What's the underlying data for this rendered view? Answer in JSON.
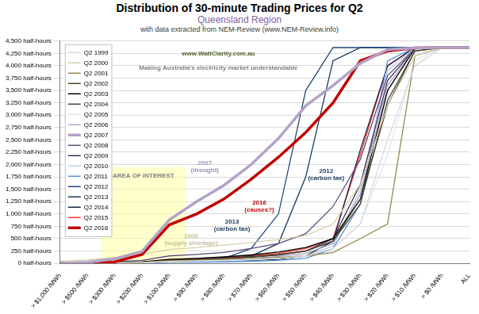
{
  "chart_data": {
    "type": "line",
    "title": "Distribution of 30-minute Trading Prices for Q2",
    "subtitle": "Queensland Region",
    "source": "with data extracted from NEM-Review (www.NEM-Review.info)",
    "categories": [
      "> $1,000 /MWh",
      "> $500 /MWh",
      "> $300 /MWh",
      "> $200 /MWh",
      "> $100 /MWh",
      "> $90 /MWh",
      "> $80 /MWh",
      "> $70 /MWh",
      "> $60 /MWh",
      "> $50 /MWh",
      "> $40 /MWh",
      "> $30 /MWh",
      "> $20 /MWh",
      "> $10 /MWh",
      "> $0 /MWh",
      "ALL"
    ],
    "series": [
      {
        "name": "Q2 1999",
        "color": "#d9d9d9",
        "values": [
          0,
          0,
          10,
          20,
          40,
          50,
          60,
          80,
          100,
          150,
          300,
          800,
          2500,
          4000,
          4368,
          4368
        ]
      },
      {
        "name": "Q2 2000",
        "color": "#d6cfa8",
        "values": [
          40,
          70,
          120,
          180,
          280,
          320,
          370,
          420,
          480,
          560,
          800,
          1600,
          3200,
          4200,
          4368,
          4368
        ]
      },
      {
        "name": "Q2 2001",
        "color": "#938953",
        "values": [
          0,
          5,
          10,
          20,
          50,
          60,
          80,
          100,
          120,
          150,
          220,
          500,
          800,
          4200,
          4368,
          4368
        ]
      },
      {
        "name": "Q2 2002",
        "color": "#4a452a",
        "values": [
          0,
          5,
          10,
          20,
          60,
          80,
          100,
          130,
          180,
          250,
          450,
          1300,
          3200,
          4300,
          4368,
          4368
        ]
      },
      {
        "name": "Q2 2003",
        "color": "#000000",
        "values": [
          0,
          10,
          20,
          30,
          80,
          100,
          130,
          170,
          230,
          320,
          500,
          1300,
          3500,
          4350,
          4368,
          4368
        ]
      },
      {
        "name": "Q2 2004",
        "color": "#404040",
        "values": [
          0,
          5,
          15,
          25,
          60,
          80,
          100,
          130,
          170,
          250,
          450,
          1200,
          3300,
          4300,
          4368,
          4368
        ]
      },
      {
        "name": "Q2 2005",
        "color": "#dce6f2",
        "values": [
          0,
          5,
          10,
          15,
          40,
          50,
          60,
          80,
          100,
          150,
          300,
          800,
          2200,
          4100,
          4368,
          4368
        ]
      },
      {
        "name": "Q2 2006",
        "color": "#b3a2c7",
        "values": [
          0,
          5,
          10,
          20,
          50,
          60,
          80,
          100,
          140,
          200,
          400,
          1400,
          3600,
          4350,
          4368,
          4368
        ]
      },
      {
        "name": "Q2 2007",
        "color": "#b3a2c7",
        "line_style": "thick",
        "values": [
          0,
          20,
          90,
          240,
          880,
          1250,
          1580,
          2000,
          2530,
          3190,
          3600,
          4050,
          4330,
          4360,
          4368,
          4368
        ]
      },
      {
        "name": "Q2 2008",
        "color": "#604a7b",
        "values": [
          0,
          10,
          30,
          60,
          150,
          180,
          220,
          300,
          400,
          600,
          1150,
          2100,
          3800,
          4350,
          4368,
          4368
        ]
      },
      {
        "name": "Q2 2009",
        "color": "#3f3151",
        "values": [
          0,
          5,
          10,
          20,
          60,
          80,
          100,
          130,
          170,
          250,
          500,
          1600,
          3700,
          4350,
          4368,
          4368
        ]
      },
      {
        "name": "Q2 2010",
        "color": "#b9cde5",
        "values": [
          0,
          5,
          10,
          15,
          30,
          40,
          50,
          70,
          100,
          150,
          350,
          1500,
          3900,
          4368,
          4368,
          4368
        ]
      },
      {
        "name": "Q2 2011",
        "color": "#558ed5",
        "values": [
          0,
          0,
          5,
          10,
          20,
          25,
          30,
          40,
          60,
          100,
          300,
          1200,
          4100,
          4368,
          4368,
          4368
        ]
      },
      {
        "name": "Q2 2012",
        "color": "#1f497d",
        "values": [
          0,
          5,
          10,
          20,
          40,
          60,
          100,
          300,
          1000,
          3500,
          4368,
          4368,
          4368,
          4368,
          4368,
          4368
        ]
      },
      {
        "name": "Q2 2013",
        "color": "#17375e",
        "values": [
          0,
          5,
          10,
          15,
          30,
          40,
          60,
          150,
          400,
          1750,
          4100,
          4368,
          4368,
          4368,
          4368,
          4368
        ]
      },
      {
        "name": "Q2 2014",
        "color": "#0f243e",
        "values": [
          0,
          0,
          5,
          10,
          30,
          40,
          50,
          60,
          80,
          150,
          450,
          2300,
          4000,
          4368,
          4368,
          4368
        ]
      },
      {
        "name": "Q2 2015",
        "color": "#ff3333",
        "values": [
          0,
          5,
          10,
          20,
          80,
          100,
          120,
          150,
          200,
          300,
          500,
          2200,
          4000,
          4368,
          4368,
          4368
        ]
      },
      {
        "name": "Q2 2016",
        "color": "#c00000",
        "line_style": "thick",
        "values": [
          5,
          10,
          30,
          180,
          780,
          1000,
          1300,
          1700,
          2150,
          2650,
          3250,
          4100,
          4300,
          4360,
          4368,
          4368
        ]
      }
    ],
    "ylim": [
      0,
      4500
    ],
    "yticks": [
      {
        "value": 0,
        "label": "0 half-hours"
      },
      {
        "value": 250,
        "label": "250 half-hours"
      },
      {
        "value": 500,
        "label": "500 half-hours"
      },
      {
        "value": 750,
        "label": "750 half-hours"
      },
      {
        "value": 1000,
        "label": "1,000 half-hours"
      },
      {
        "value": 1250,
        "label": "1,250 half-hours"
      },
      {
        "value": 1500,
        "label": "1,500 half-hours"
      },
      {
        "value": 1750,
        "label": "1,750 half-hours"
      },
      {
        "value": 2000,
        "label": "2,000 half-hours"
      },
      {
        "value": 2250,
        "label": "2,250 half-hours"
      },
      {
        "value": 2500,
        "label": "2,500 half-hours"
      },
      {
        "value": 2750,
        "label": "2,750 half-hours"
      },
      {
        "value": 3000,
        "label": "3,000 half-hours"
      },
      {
        "value": 3250,
        "label": "3,250 half-hours"
      },
      {
        "value": 3500,
        "label": "3,500 half-hours"
      },
      {
        "value": 3750,
        "label": "3,750 half-hours"
      },
      {
        "value": 4000,
        "label": "4,000 half-hours"
      },
      {
        "value": 4250,
        "label": "4,250 half-hours"
      },
      {
        "value": 4500,
        "label": "4,500 half-hours"
      }
    ],
    "grid": true,
    "legend": "upper left",
    "area_of_interest": {
      "text": "AREA OF INTEREST",
      "color": "#7f7f7f",
      "x_range": [
        1.5,
        4.6
      ],
      "y_range": [
        0,
        1950
      ]
    },
    "annotations": [
      {
        "text": [
          "2007",
          "(drought)"
        ],
        "x": 5.3,
        "y": 1950,
        "color": "#9f8fc0"
      },
      {
        "text": [
          "2016",
          "(causes?)"
        ],
        "x": 7.3,
        "y": 1150,
        "color": "#c00000"
      },
      {
        "text": [
          "2012",
          "(carbon tax)"
        ],
        "x": 9.75,
        "y": 1800,
        "color": "#17375e"
      },
      {
        "text": [
          "2013",
          "(carbon tax)"
        ],
        "x": 6.3,
        "y": 760,
        "color": "#17375e"
      },
      {
        "text": [
          "2000",
          "(supply shortage)"
        ],
        "x": 4.8,
        "y": 480,
        "color": "#c4bd97"
      },
      {
        "text": [
          "www.WattClarity.com.au"
        ],
        "x": 5.8,
        "y": 4250,
        "color": "#4f6228"
      },
      {
        "text": [
          "Making Australia's electricity market understandable"
        ],
        "x": 5.8,
        "y": 3950,
        "color": "#7f7f7f"
      }
    ]
  }
}
